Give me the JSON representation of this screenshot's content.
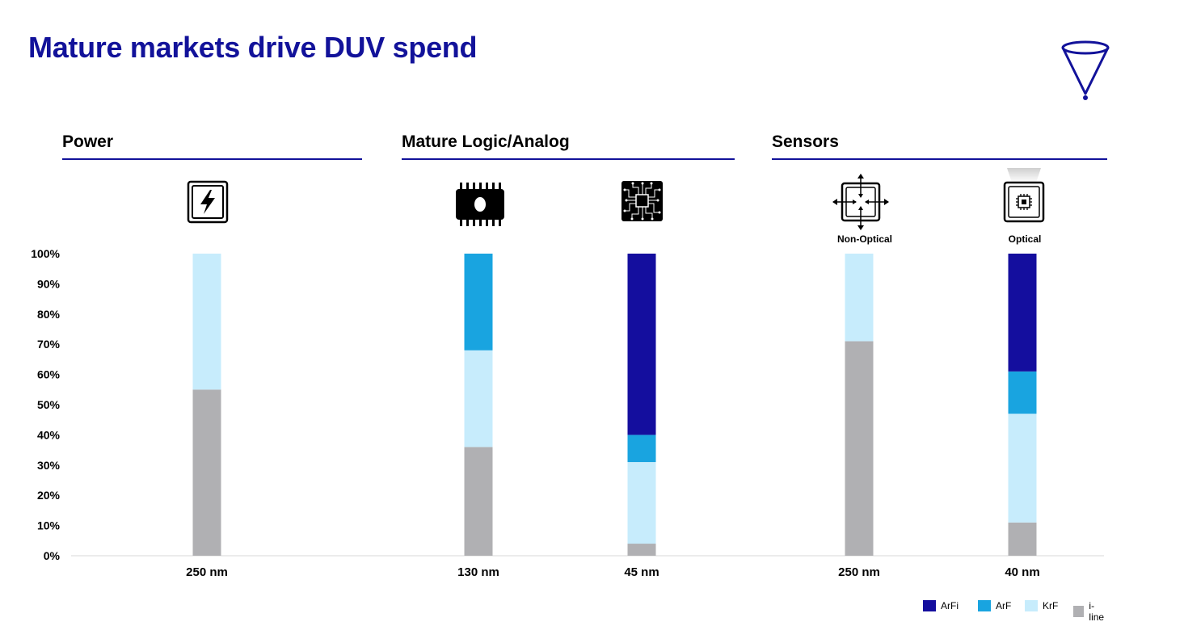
{
  "title": "Mature markets drive DUV spend",
  "logo_icon": "funnel-logo-icon",
  "sections": [
    {
      "name": "Power"
    },
    {
      "name": "Mature Logic/Analog"
    },
    {
      "name": "Sensors"
    }
  ],
  "icons": [
    {
      "name": "power-lightning-icon",
      "caption": ""
    },
    {
      "name": "memory-chip-icon",
      "caption": ""
    },
    {
      "name": "circuit-chip-icon",
      "caption": ""
    },
    {
      "name": "non-optical-sensor-icon",
      "caption": "Non-Optical"
    },
    {
      "name": "optical-sensor-icon",
      "caption": "Optical"
    }
  ],
  "colors": {
    "title": "#12129a",
    "ArFi": "#140e9e",
    "ArF": "#19a4e0",
    "KrF": "#c7ecfc",
    "i-line": "#b0b0b3"
  },
  "chart_data": {
    "type": "bar",
    "stacked": true,
    "categories": [
      "250 nm",
      "130 nm",
      "45 nm",
      "250 nm",
      "40 nm"
    ],
    "series": [
      {
        "name": "i-line",
        "values": [
          55,
          36,
          4,
          71,
          11
        ]
      },
      {
        "name": "KrF",
        "values": [
          45,
          32,
          27,
          29,
          36
        ]
      },
      {
        "name": "ArF",
        "values": [
          0,
          32,
          9,
          0,
          14
        ]
      },
      {
        "name": "ArFi",
        "values": [
          0,
          0,
          60,
          0,
          39
        ]
      }
    ],
    "legend": [
      "ArFi",
      "ArF",
      "KrF",
      "i-line"
    ],
    "legend_placement": "bottom-right",
    "ylim": [
      0,
      100
    ],
    "yticks": [
      "0%",
      "10%",
      "20%",
      "30%",
      "40%",
      "50%",
      "60%",
      "70%",
      "80%",
      "90%",
      "100%"
    ],
    "grid": false
  }
}
